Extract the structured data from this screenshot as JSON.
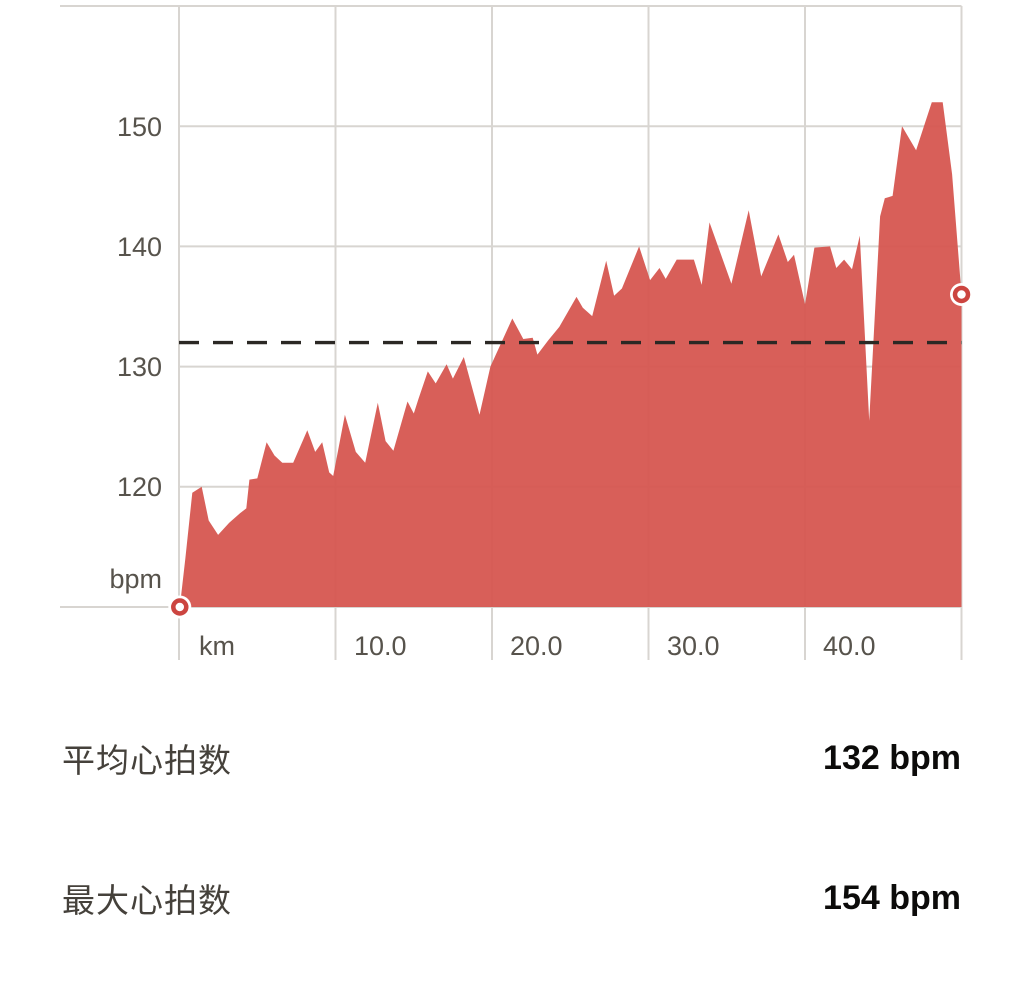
{
  "chart_data": {
    "type": "area",
    "x_unit_label": "km",
    "y_unit_label": "bpm",
    "x_ticks": [
      "10.0",
      "20.0",
      "30.0",
      "40.0"
    ],
    "y_ticks": [
      "150",
      "140",
      "130",
      "120"
    ],
    "x_range_km": [
      0,
      50
    ],
    "y_range_bpm": [
      110,
      160
    ],
    "grid": true,
    "average_line_bpm": 132,
    "start_point": {
      "km": 0.05,
      "bpm": 110
    },
    "end_point": {
      "km": 50.0,
      "bpm": 136
    },
    "colors": {
      "area": "#d6554f",
      "marker_ring": "#cc4540",
      "grid": "#d8d5d1",
      "average_dash": "#2b2824",
      "axis_text": "#57534c"
    },
    "series": [
      {
        "name": "heart-rate-bpm-vs-km",
        "points": [
          [
            0.05,
            110
          ],
          [
            0.4,
            114
          ],
          [
            0.85,
            119.5
          ],
          [
            1.45,
            120
          ],
          [
            1.9,
            117.2
          ],
          [
            2.5,
            116
          ],
          [
            3.2,
            117
          ],
          [
            3.9,
            117.8
          ],
          [
            4.3,
            118.2
          ],
          [
            4.5,
            120.6
          ],
          [
            5.0,
            120.7
          ],
          [
            5.6,
            123.7
          ],
          [
            6.1,
            122.6
          ],
          [
            6.6,
            122
          ],
          [
            7.3,
            122
          ],
          [
            8.2,
            124.7
          ],
          [
            8.7,
            122.9
          ],
          [
            9.15,
            123.7
          ],
          [
            9.6,
            121.2
          ],
          [
            9.85,
            120.9
          ],
          [
            10.6,
            126
          ],
          [
            11.3,
            122.9
          ],
          [
            11.9,
            122
          ],
          [
            12.7,
            127
          ],
          [
            13.2,
            123.8
          ],
          [
            13.7,
            123
          ],
          [
            14.6,
            127.1
          ],
          [
            15.0,
            126.1
          ],
          [
            15.3,
            127.3
          ],
          [
            15.9,
            129.6
          ],
          [
            16.4,
            128.6
          ],
          [
            17.1,
            130.2
          ],
          [
            17.5,
            129
          ],
          [
            18.2,
            130.8
          ],
          [
            19.2,
            126
          ],
          [
            19.9,
            130
          ],
          [
            21.3,
            134
          ],
          [
            22.0,
            132.3
          ],
          [
            22.6,
            132.4
          ],
          [
            22.9,
            131
          ],
          [
            23.6,
            132.2
          ],
          [
            24.3,
            133.3
          ],
          [
            25.4,
            135.8
          ],
          [
            25.8,
            134.9
          ],
          [
            26.4,
            134.2
          ],
          [
            27.3,
            138.8
          ],
          [
            27.8,
            135.9
          ],
          [
            28.3,
            136.5
          ],
          [
            29.4,
            140
          ],
          [
            30.1,
            137.2
          ],
          [
            30.7,
            138.2
          ],
          [
            31.1,
            137.3
          ],
          [
            31.8,
            138.9
          ],
          [
            32.9,
            138.9
          ],
          [
            33.4,
            136.8
          ],
          [
            33.9,
            142
          ],
          [
            35.3,
            136.9
          ],
          [
            36.4,
            143
          ],
          [
            37.2,
            137.5
          ],
          [
            38.3,
            141
          ],
          [
            38.9,
            138.7
          ],
          [
            39.3,
            139.3
          ],
          [
            40.0,
            135.2
          ],
          [
            40.6,
            139.9
          ],
          [
            41.6,
            140
          ],
          [
            42.0,
            138.2
          ],
          [
            42.5,
            138.9
          ],
          [
            43.0,
            138.1
          ],
          [
            43.5,
            140.9
          ],
          [
            44.1,
            125.5
          ],
          [
            44.8,
            142.5
          ],
          [
            45.1,
            144
          ],
          [
            45.6,
            144.2
          ],
          [
            46.2,
            150
          ],
          [
            47.1,
            148
          ],
          [
            48.1,
            152
          ],
          [
            48.8,
            152
          ],
          [
            49.4,
            146
          ],
          [
            50.0,
            136
          ]
        ]
      }
    ]
  },
  "stats": [
    {
      "label": "平均心拍数",
      "value": "132 bpm"
    },
    {
      "label": "最大心拍数",
      "value": "154 bpm"
    }
  ]
}
